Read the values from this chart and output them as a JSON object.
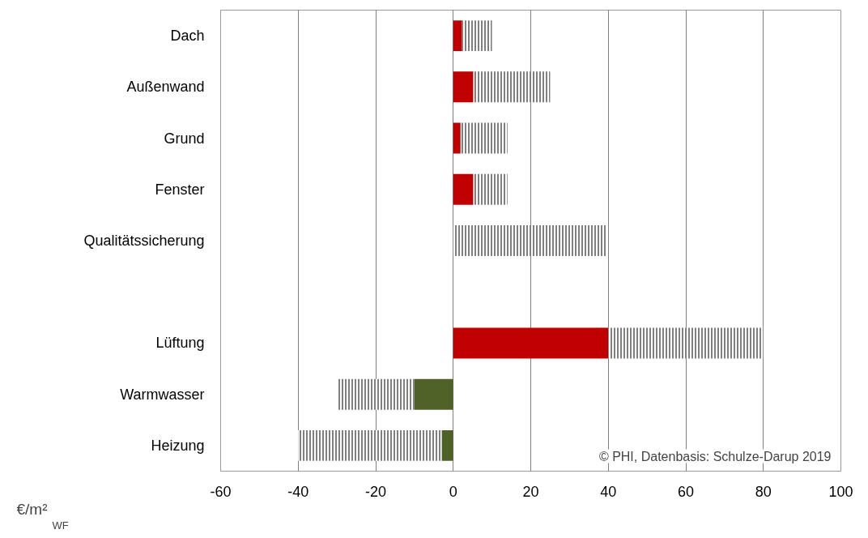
{
  "chart_data": {
    "type": "bar",
    "orientation": "horizontal",
    "stacked": true,
    "categories": [
      "Dach",
      "Außenwand",
      "Grund",
      "Fenster",
      "Qualitätssicherung",
      null,
      "Lüftung",
      "Warmwasser",
      "Heizung"
    ],
    "series": [
      {
        "colors": [
          "#c00000",
          "#c00000",
          "#c00000",
          "#c00000",
          "#c00000",
          "#c00000",
          "#c00000",
          "#4f6228",
          "#4f6228"
        ],
        "values": [
          2.3,
          5.2,
          1.9,
          5.2,
          null,
          null,
          40,
          -10,
          -3
        ]
      },
      {
        "color": "#000000",
        "values": [
          7.7,
          19.8,
          12.1,
          8.8,
          39.4,
          null,
          40,
          -20,
          -37
        ]
      }
    ],
    "xlim": [
      -60,
      100
    ],
    "xticks": [
      -60,
      -40,
      -20,
      0,
      20,
      40,
      60,
      80,
      100
    ],
    "grid": "x",
    "ylabel": "€/m²$_{WF}$",
    "annotations": [
      "© PHI, Datenbasis: Schulze-Darup 2019"
    ]
  }
}
